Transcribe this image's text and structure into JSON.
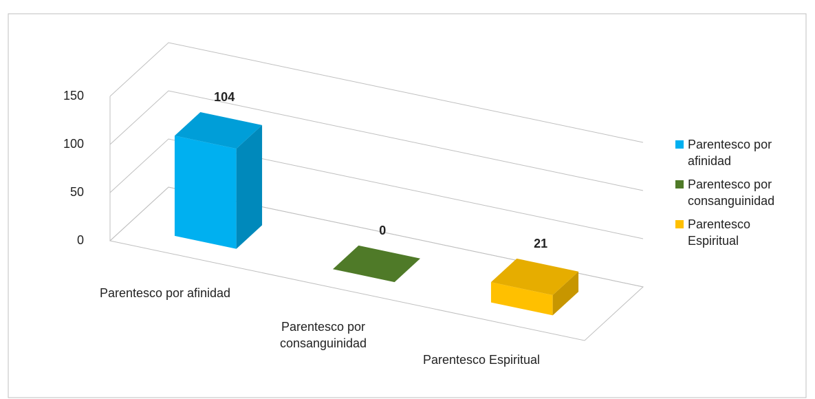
{
  "chart_data": {
    "type": "bar3d",
    "categories": [
      "Parentesco por afinidad",
      "Parentesco por consanguinidad",
      "Parentesco Espiritual"
    ],
    "values": [
      104,
      0,
      21
    ],
    "colors": [
      "#00b0f0",
      "#4f7a28",
      "#ffc000"
    ],
    "ylim": [
      0,
      150
    ],
    "yticks": [
      0,
      50,
      100,
      150
    ],
    "grid": true,
    "legend": "right"
  }
}
